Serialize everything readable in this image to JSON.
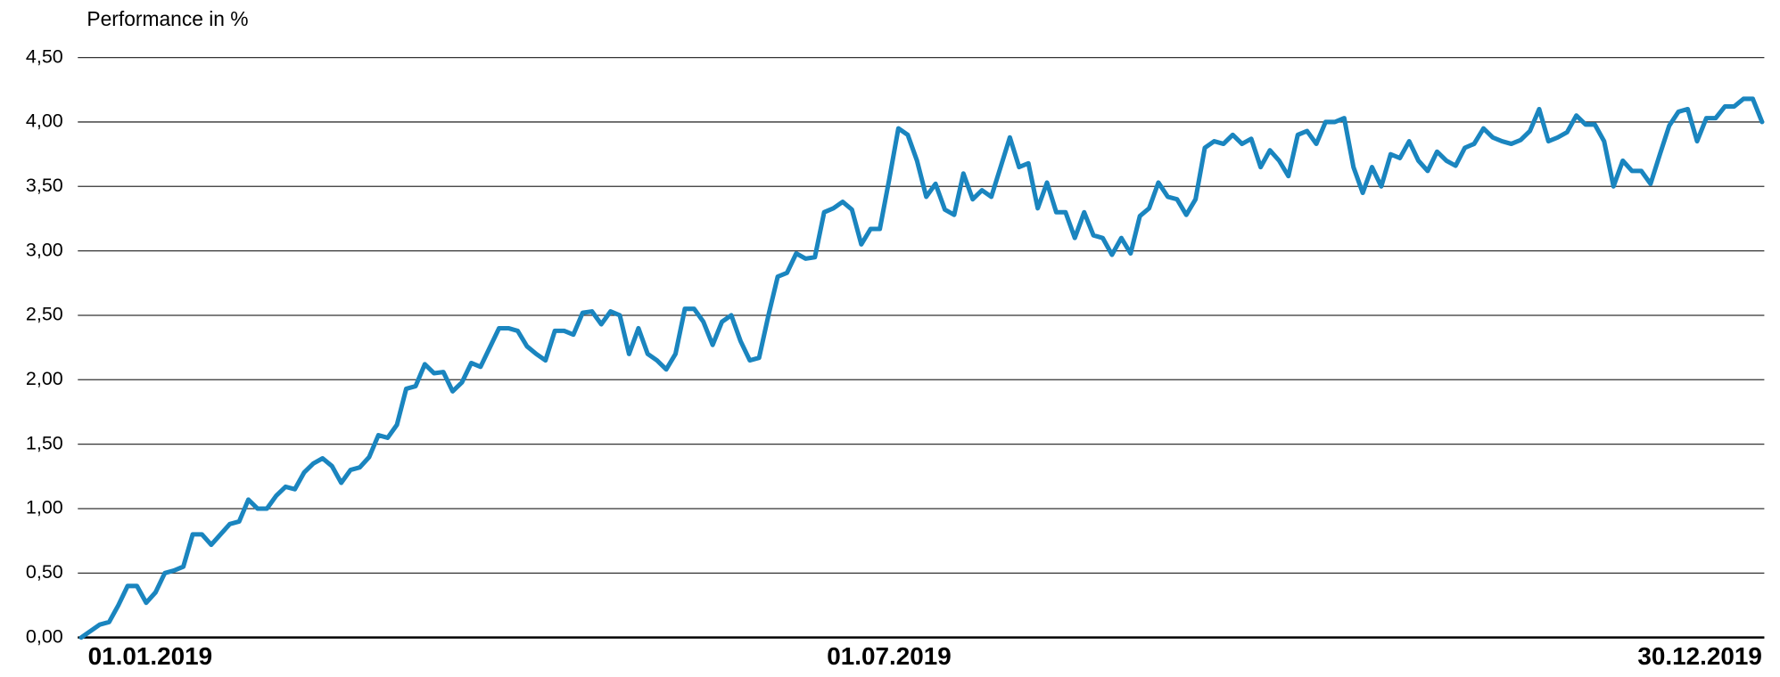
{
  "chart_data": {
    "type": "line",
    "ylabel": "Performance in %",
    "ylim": [
      0,
      4.5
    ],
    "yticks": [
      {
        "value": 0,
        "label": "0,00"
      },
      {
        "value": 0.5,
        "label": "0,50"
      },
      {
        "value": 1,
        "label": "1,00"
      },
      {
        "value": 1.5,
        "label": "1,50"
      },
      {
        "value": 2,
        "label": "2,00"
      },
      {
        "value": 2.5,
        "label": "2,50"
      },
      {
        "value": 3,
        "label": "3,00"
      },
      {
        "value": 3.5,
        "label": "3,50"
      },
      {
        "value": 4,
        "label": "4,00"
      },
      {
        "value": 4.5,
        "label": "4,50"
      }
    ],
    "grid": true,
    "color": "#1a85bf",
    "categories": [
      "01.01.2019",
      null,
      null,
      null,
      null,
      null,
      null,
      null,
      null,
      null,
      null,
      null,
      null,
      null,
      null,
      null,
      null,
      null,
      null,
      null,
      null,
      null,
      null,
      null,
      null,
      null,
      null,
      null,
      null,
      null,
      null,
      null,
      null,
      null,
      null,
      null,
      null,
      null,
      null,
      null,
      null,
      null,
      null,
      null,
      null,
      null,
      null,
      null,
      null,
      null,
      null,
      null,
      null,
      null,
      null,
      null,
      null,
      null,
      null,
      null,
      null,
      null,
      null,
      null,
      null,
      null,
      null,
      null,
      null,
      null,
      null,
      null,
      null,
      null,
      null,
      null,
      null,
      null,
      null,
      null,
      null,
      null,
      null,
      null,
      null,
      null,
      null,
      "01.07.2019",
      null,
      null,
      null,
      null,
      null,
      null,
      null,
      null,
      null,
      null,
      null,
      null,
      null,
      null,
      null,
      null,
      null,
      null,
      null,
      null,
      null,
      null,
      null,
      null,
      null,
      null,
      null,
      null,
      null,
      null,
      null,
      null,
      null,
      null,
      null,
      null,
      null,
      null,
      null,
      null,
      null,
      null,
      null,
      null,
      null,
      null,
      null,
      null,
      null,
      null,
      null,
      null,
      null,
      null,
      null,
      null,
      null,
      null,
      null,
      null,
      null,
      null,
      null,
      null,
      null,
      null,
      null,
      null,
      null,
      null,
      null,
      null,
      null,
      null,
      null,
      null,
      null,
      null,
      null,
      null,
      null,
      null,
      null,
      null,
      null,
      null,
      null,
      null,
      null,
      null,
      null,
      null,
      null,
      "30.12.2019"
    ],
    "values": [
      0,
      0.05,
      0.1,
      0.12,
      0.25,
      0.4,
      0.4,
      0.27,
      0.35,
      0.5,
      0.52,
      0.55,
      0.8,
      0.8,
      0.72,
      0.8,
      0.88,
      0.9,
      1.07,
      1.0,
      1.0,
      1.1,
      1.17,
      1.15,
      1.28,
      1.35,
      1.39,
      1.33,
      1.2,
      1.3,
      1.32,
      1.4,
      1.57,
      1.55,
      1.65,
      1.93,
      1.95,
      2.12,
      2.05,
      2.06,
      1.91,
      1.98,
      2.13,
      2.1,
      2.25,
      2.4,
      2.4,
      2.38,
      2.26,
      2.2,
      2.15,
      2.38,
      2.38,
      2.35,
      2.52,
      2.53,
      2.43,
      2.53,
      2.5,
      2.2,
      2.4,
      2.2,
      2.15,
      2.08,
      2.2,
      2.55,
      2.55,
      2.45,
      2.27,
      2.45,
      2.5,
      2.3,
      2.15,
      2.17,
      2.5,
      2.8,
      2.83,
      2.98,
      2.94,
      2.95,
      3.3,
      3.33,
      3.38,
      3.32,
      3.05,
      3.17,
      3.17,
      3.55,
      3.95,
      3.9,
      3.7,
      3.42,
      3.52,
      3.32,
      3.28,
      3.6,
      3.4,
      3.47,
      3.42,
      3.65,
      3.88,
      3.65,
      3.68,
      3.33,
      3.53,
      3.3,
      3.3,
      3.1,
      3.3,
      3.12,
      3.1,
      2.97,
      3.1,
      2.98,
      3.27,
      3.33,
      3.53,
      3.42,
      3.4,
      3.28,
      3.4,
      3.8,
      3.85,
      3.83,
      3.9,
      3.83,
      3.87,
      3.65,
      3.78,
      3.7,
      3.58,
      3.9,
      3.93,
      3.83,
      4.0,
      4.0,
      4.03,
      3.65,
      3.45,
      3.65,
      3.5,
      3.75,
      3.72,
      3.85,
      3.7,
      3.62,
      3.77,
      3.7,
      3.66,
      3.8,
      3.83,
      3.95,
      3.88,
      3.85,
      3.83,
      3.86,
      3.93,
      4.1,
      3.85,
      3.88,
      3.92,
      4.05,
      3.98,
      3.98,
      3.85,
      3.5,
      3.7,
      3.62,
      3.62,
      3.52,
      3.75,
      3.97,
      4.08,
      4.1,
      3.85,
      4.03,
      4.03,
      4.12,
      4.12,
      4.18,
      4.18,
      4.0
    ]
  }
}
